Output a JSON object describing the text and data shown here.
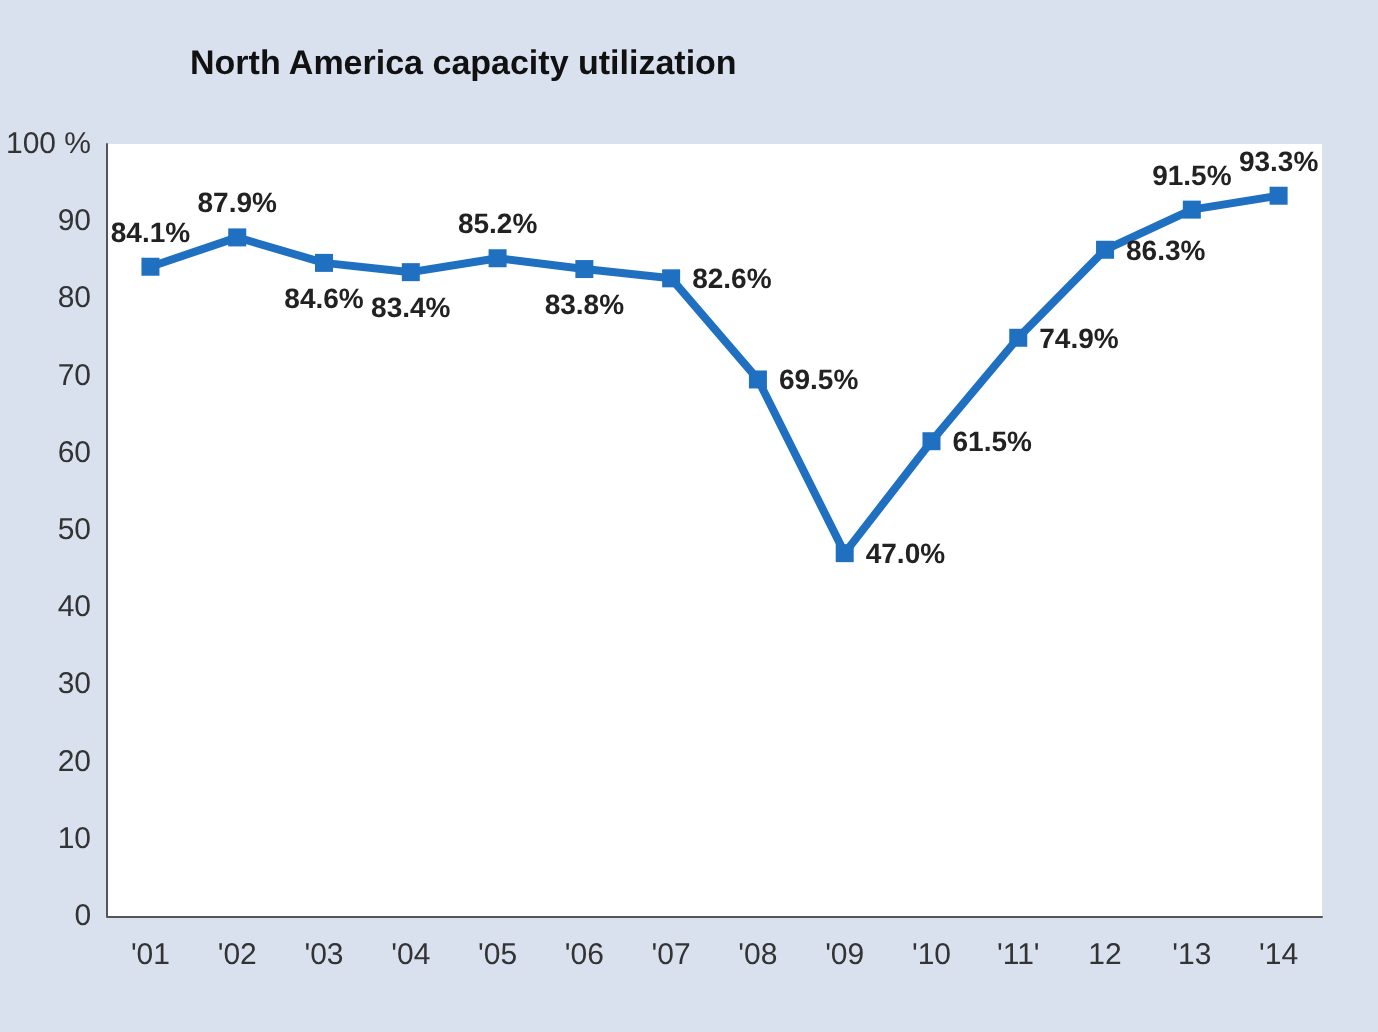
{
  "chart_data": {
    "type": "line",
    "title": "North America capacity utilization",
    "categories": [
      "'01",
      "'02",
      "'03",
      "'04",
      "'05",
      "'06",
      "'07",
      "'08",
      "'09",
      "'10",
      "'11'",
      "12",
      "'13",
      "'14"
    ],
    "series": [
      {
        "color": "#1f70c1",
        "values": [
          84.1,
          87.9,
          84.6,
          83.4,
          85.2,
          83.8,
          82.6,
          69.5,
          47.0,
          61.5,
          74.9,
          86.3,
          91.5,
          93.3
        ],
        "value_labels": [
          "84.1%",
          "87.9%",
          "84.6%",
          "83.4%",
          "85.2%",
          "83.8%",
          "82.6%",
          "69.5%",
          "47.0%",
          "61.5%",
          "74.9%",
          "86.3%",
          "91.5%",
          "93.3%"
        ]
      }
    ],
    "ylim": [
      0,
      100
    ],
    "yticks": [
      0,
      10,
      20,
      30,
      40,
      50,
      60,
      70,
      80,
      90,
      {
        "value": 100,
        "label": "100 %"
      }
    ],
    "grid": false,
    "marker": "square",
    "line_style": "solid"
  }
}
